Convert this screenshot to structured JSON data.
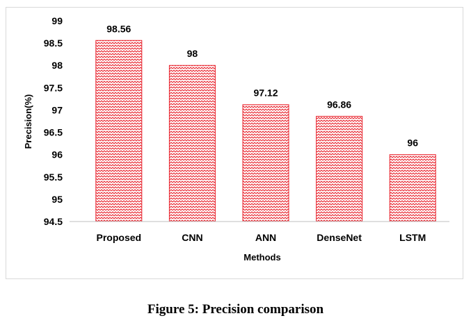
{
  "chart_data": {
    "type": "bar",
    "categories": [
      "Proposed",
      "CNN",
      "ANN",
      "DenseNet",
      "LSTM"
    ],
    "values": [
      98.56,
      98,
      97.12,
      96.86,
      96
    ],
    "data_labels": [
      "98.56",
      "98",
      "97.12",
      "96.86",
      "96"
    ],
    "title": "",
    "xlabel": "Methods",
    "ylabel": "Precision(%)",
    "ylim": [
      94.5,
      99
    ],
    "yticks": [
      94.5,
      95,
      95.5,
      96,
      96.5,
      97,
      97.5,
      98,
      98.5,
      99
    ],
    "ytick_labels": [
      "94.5",
      "95",
      "95.5",
      "96",
      "96.5",
      "97",
      "97.5",
      "98",
      "98.5",
      "99"
    ],
    "grid": false,
    "bar_color": "#e8202a",
    "bar_pattern": "zigzag"
  },
  "caption": "Figure 5: Precision comparison"
}
